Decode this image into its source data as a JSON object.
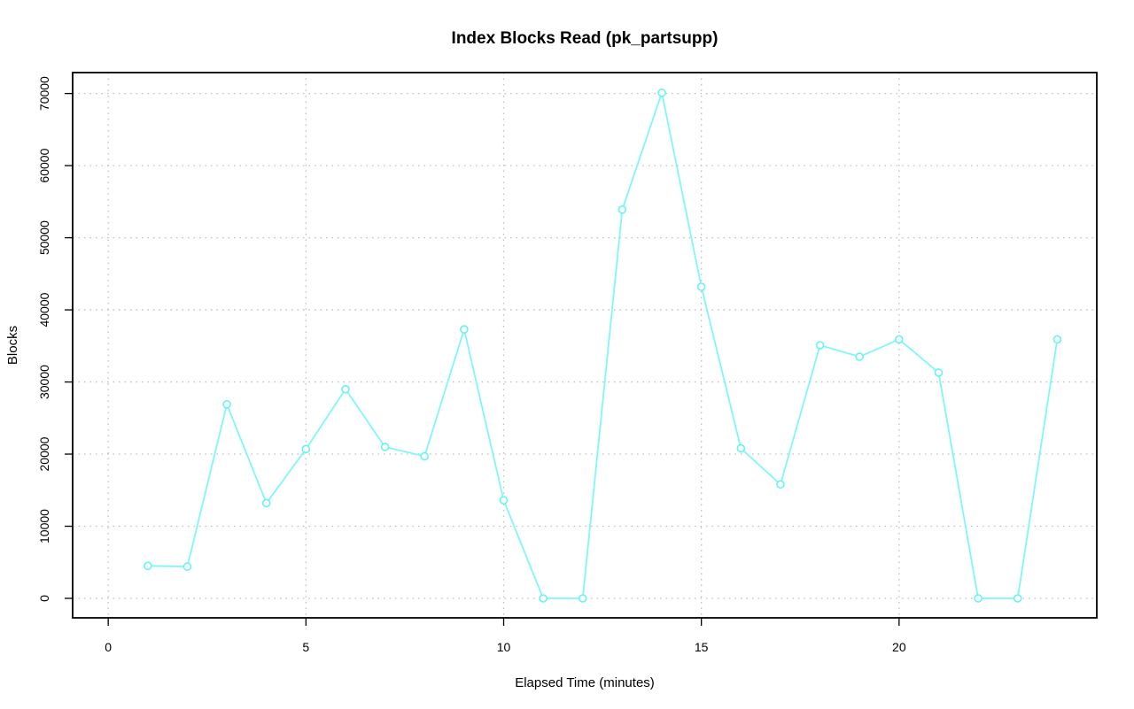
{
  "chart_data": {
    "type": "line",
    "title": "Index Blocks Read (pk_partsupp)",
    "xlabel": "Elapsed Time (minutes)",
    "ylabel": "Blocks",
    "xlim": [
      -0.9,
      25
    ],
    "ylim": [
      -2700,
      72900
    ],
    "x_ticks": [
      0,
      5,
      10,
      15,
      20
    ],
    "y_ticks": [
      0,
      10000,
      20000,
      30000,
      40000,
      50000,
      60000,
      70000
    ],
    "grid": true,
    "series": [
      {
        "color": "#7ff7fa",
        "x": [
          1,
          2,
          3,
          4,
          5,
          6,
          7,
          8,
          9,
          10,
          11,
          12,
          13,
          14,
          15,
          16,
          17,
          18,
          19,
          20,
          21,
          22,
          23,
          24
        ],
        "y": [
          4500,
          4400,
          26900,
          13200,
          20700,
          29000,
          21000,
          19700,
          37300,
          13600,
          0,
          0,
          53900,
          70100,
          43200,
          20800,
          15800,
          35100,
          33500,
          35900,
          31300,
          0,
          0,
          35900
        ]
      }
    ]
  }
}
